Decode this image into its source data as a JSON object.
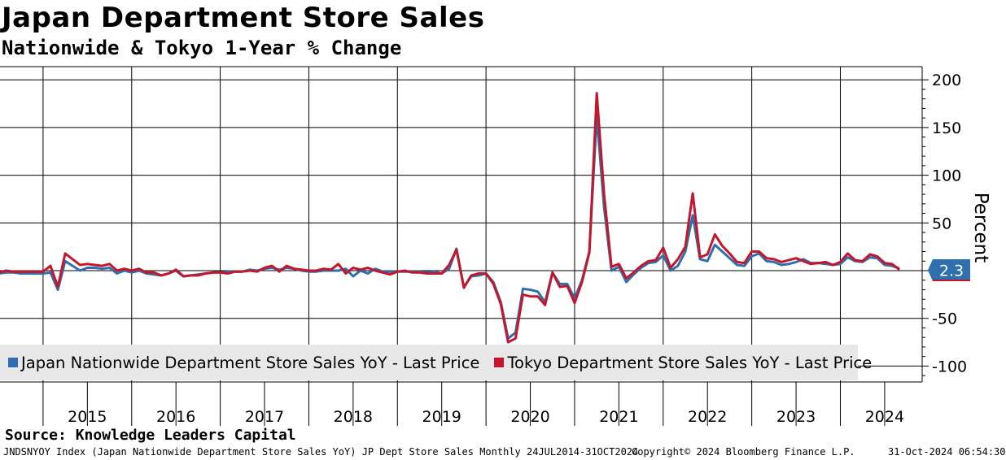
{
  "header": {
    "title": "Japan Department Store Sales",
    "subtitle": "Nationwide & Tokyo 1-Year % Change"
  },
  "legend": {
    "items": [
      {
        "label": "Japan Nationwide Department Store Sales YoY - Last Price",
        "color": "#2f6fad"
      },
      {
        "label": "Tokyo Department Store Sales YoY - Last Price",
        "color": "#c4172c"
      }
    ]
  },
  "last_value": {
    "label": "2.3",
    "color": "#2f6fad"
  },
  "footer": {
    "source": "Source: Knowledge Leaders Capital",
    "ticker": "JNDSNYOY Index (Japan Nationwide Department Store Sales YoY) JP Dept Store Sales  Monthly 24JUL2014-31OCT2024",
    "copyright": "Copyright© 2024 Bloomberg Finance L.P.",
    "timestamp": "31-Oct-2024 06:54:30"
  },
  "chart_data": {
    "type": "line",
    "ylabel": "Percent",
    "ylim": [
      -120,
      210
    ],
    "yticks": [
      200,
      150,
      100,
      50,
      0,
      -50,
      -100
    ],
    "ytick_labels": [
      "200",
      "150",
      "100",
      "50",
      "",
      "-50",
      "-100"
    ],
    "x_start": "2014-07",
    "x_end": "2024-10",
    "year_labels": [
      "2015",
      "2016",
      "2017",
      "2018",
      "2019",
      "2020",
      "2021",
      "2022",
      "2023",
      "2024"
    ],
    "grid": true,
    "legend_position": "bottom-left",
    "series": [
      {
        "name": "Japan Nationwide Department Store Sales YoY - Last Price",
        "color": "#2f6fad",
        "points": [
          [
            "2014-07",
            -3
          ],
          [
            "2014-08",
            -2
          ],
          [
            "2014-09",
            -2
          ],
          [
            "2014-10",
            -3
          ],
          [
            "2014-11",
            -3
          ],
          [
            "2014-12",
            -3
          ],
          [
            "2015-01",
            -3
          ],
          [
            "2015-02",
            -2
          ],
          [
            "2015-03",
            -20
          ],
          [
            "2015-04",
            10
          ],
          [
            "2015-05",
            5
          ],
          [
            "2015-06",
            0
          ],
          [
            "2015-07",
            3
          ],
          [
            "2015-08",
            3
          ],
          [
            "2015-09",
            2
          ],
          [
            "2015-10",
            3
          ],
          [
            "2015-11",
            -3
          ],
          [
            "2015-12",
            0
          ],
          [
            "2016-01",
            -2
          ],
          [
            "2016-02",
            0
          ],
          [
            "2016-03",
            -3
          ],
          [
            "2016-04",
            -4
          ],
          [
            "2016-05",
            -5
          ],
          [
            "2016-06",
            -3
          ],
          [
            "2016-07",
            0
          ],
          [
            "2016-08",
            -6
          ],
          [
            "2016-09",
            -5
          ],
          [
            "2016-10",
            -4
          ],
          [
            "2016-11",
            -3
          ],
          [
            "2016-12",
            -2
          ],
          [
            "2017-01",
            -2
          ],
          [
            "2017-02",
            -1
          ],
          [
            "2017-03",
            -1
          ],
          [
            "2017-04",
            -1
          ],
          [
            "2017-05",
            1
          ],
          [
            "2017-06",
            0
          ],
          [
            "2017-07",
            2
          ],
          [
            "2017-08",
            3
          ],
          [
            "2017-09",
            1
          ],
          [
            "2017-10",
            3
          ],
          [
            "2017-11",
            2
          ],
          [
            "2017-12",
            0
          ],
          [
            "2018-01",
            -1
          ],
          [
            "2018-02",
            -1
          ],
          [
            "2018-03",
            0
          ],
          [
            "2018-04",
            0
          ],
          [
            "2018-05",
            0
          ],
          [
            "2018-06",
            2
          ],
          [
            "2018-07",
            -6
          ],
          [
            "2018-08",
            0
          ],
          [
            "2018-09",
            -3
          ],
          [
            "2018-10",
            2
          ],
          [
            "2018-11",
            -1
          ],
          [
            "2018-12",
            -1
          ],
          [
            "2019-01",
            -1
          ],
          [
            "2019-02",
            -1
          ],
          [
            "2019-03",
            -1
          ],
          [
            "2019-04",
            -1
          ],
          [
            "2019-05",
            -2
          ],
          [
            "2019-06",
            -1
          ],
          [
            "2019-07",
            -3
          ],
          [
            "2019-08",
            2
          ],
          [
            "2019-09",
            23
          ],
          [
            "2019-10",
            -17
          ],
          [
            "2019-11",
            -6
          ],
          [
            "2019-12",
            -5
          ],
          [
            "2020-01",
            -3
          ],
          [
            "2020-02",
            -12
          ],
          [
            "2020-03",
            -33
          ],
          [
            "2020-04",
            -71
          ],
          [
            "2020-05",
            -65
          ],
          [
            "2020-06",
            -19
          ],
          [
            "2020-07",
            -20
          ],
          [
            "2020-08",
            -22
          ],
          [
            "2020-09",
            -33
          ],
          [
            "2020-10",
            -2
          ],
          [
            "2020-11",
            -14
          ],
          [
            "2020-12",
            -14
          ],
          [
            "2021-01",
            -29
          ],
          [
            "2021-02",
            -10
          ],
          [
            "2021-03",
            20
          ],
          [
            "2021-04",
            162
          ],
          [
            "2021-05",
            66
          ],
          [
            "2021-06",
            0
          ],
          [
            "2021-07",
            4
          ],
          [
            "2021-08",
            -12
          ],
          [
            "2021-09",
            -4
          ],
          [
            "2021-10",
            3
          ],
          [
            "2021-11",
            8
          ],
          [
            "2021-12",
            9
          ],
          [
            "2022-01",
            16
          ],
          [
            "2022-02",
            0
          ],
          [
            "2022-03",
            5
          ],
          [
            "2022-04",
            20
          ],
          [
            "2022-05",
            58
          ],
          [
            "2022-06",
            12
          ],
          [
            "2022-07",
            10
          ],
          [
            "2022-08",
            27
          ],
          [
            "2022-09",
            20
          ],
          [
            "2022-10",
            13
          ],
          [
            "2022-11",
            6
          ],
          [
            "2022-12",
            5
          ],
          [
            "2023-01",
            15
          ],
          [
            "2023-02",
            18
          ],
          [
            "2023-03",
            10
          ],
          [
            "2023-04",
            9
          ],
          [
            "2023-05",
            6
          ],
          [
            "2023-06",
            7
          ],
          [
            "2023-07",
            9
          ],
          [
            "2023-08",
            12
          ],
          [
            "2023-09",
            8
          ],
          [
            "2023-10",
            8
          ],
          [
            "2023-11",
            7
          ],
          [
            "2023-12",
            6
          ],
          [
            "2024-01",
            7
          ],
          [
            "2024-02",
            14
          ],
          [
            "2024-03",
            10
          ],
          [
            "2024-04",
            9
          ],
          [
            "2024-05",
            14
          ],
          [
            "2024-06",
            13
          ],
          [
            "2024-07",
            6
          ],
          [
            "2024-08",
            5
          ],
          [
            "2024-09",
            2.3
          ]
        ]
      },
      {
        "name": "Tokyo Department Store Sales YoY - Last Price",
        "color": "#c4172c",
        "points": [
          [
            "2014-07",
            -2
          ],
          [
            "2014-08",
            0
          ],
          [
            "2014-09",
            -1
          ],
          [
            "2014-10",
            -1
          ],
          [
            "2014-11",
            -1
          ],
          [
            "2014-12",
            -1
          ],
          [
            "2015-01",
            -1
          ],
          [
            "2015-02",
            5
          ],
          [
            "2015-03",
            -17
          ],
          [
            "2015-04",
            18
          ],
          [
            "2015-05",
            12
          ],
          [
            "2015-06",
            6
          ],
          [
            "2015-07",
            7
          ],
          [
            "2015-08",
            6
          ],
          [
            "2015-09",
            5
          ],
          [
            "2015-10",
            7
          ],
          [
            "2015-11",
            0
          ],
          [
            "2015-12",
            2
          ],
          [
            "2016-01",
            0
          ],
          [
            "2016-02",
            2
          ],
          [
            "2016-03",
            -2
          ],
          [
            "2016-04",
            -2
          ],
          [
            "2016-05",
            -5
          ],
          [
            "2016-06",
            -3
          ],
          [
            "2016-07",
            1
          ],
          [
            "2016-08",
            -6
          ],
          [
            "2016-09",
            -5
          ],
          [
            "2016-10",
            -5
          ],
          [
            "2016-11",
            -3
          ],
          [
            "2016-12",
            -2
          ],
          [
            "2017-01",
            -2
          ],
          [
            "2017-02",
            -3
          ],
          [
            "2017-03",
            -1
          ],
          [
            "2017-04",
            -1
          ],
          [
            "2017-05",
            0
          ],
          [
            "2017-06",
            -1
          ],
          [
            "2017-07",
            3
          ],
          [
            "2017-08",
            5
          ],
          [
            "2017-09",
            -1
          ],
          [
            "2017-10",
            5
          ],
          [
            "2017-11",
            2
          ],
          [
            "2017-12",
            1
          ],
          [
            "2018-01",
            0
          ],
          [
            "2018-02",
            0
          ],
          [
            "2018-03",
            2
          ],
          [
            "2018-04",
            1
          ],
          [
            "2018-05",
            7
          ],
          [
            "2018-06",
            -3
          ],
          [
            "2018-07",
            3
          ],
          [
            "2018-08",
            1
          ],
          [
            "2018-09",
            3
          ],
          [
            "2018-10",
            0
          ],
          [
            "2018-11",
            -2
          ],
          [
            "2018-12",
            -4
          ],
          [
            "2019-01",
            -1
          ],
          [
            "2019-02",
            0
          ],
          [
            "2019-03",
            -2
          ],
          [
            "2019-04",
            -2
          ],
          [
            "2019-05",
            -3
          ],
          [
            "2019-06",
            -3
          ],
          [
            "2019-07",
            -3
          ],
          [
            "2019-08",
            6
          ],
          [
            "2019-09",
            22
          ],
          [
            "2019-10",
            -18
          ],
          [
            "2019-11",
            -5
          ],
          [
            "2019-12",
            -3
          ],
          [
            "2020-01",
            -3
          ],
          [
            "2020-02",
            -14
          ],
          [
            "2020-03",
            -35
          ],
          [
            "2020-04",
            -75
          ],
          [
            "2020-05",
            -71
          ],
          [
            "2020-06",
            -25
          ],
          [
            "2020-07",
            -27
          ],
          [
            "2020-08",
            -27
          ],
          [
            "2020-09",
            -36
          ],
          [
            "2020-10",
            -2
          ],
          [
            "2020-11",
            -17
          ],
          [
            "2020-12",
            -16
          ],
          [
            "2021-01",
            -34
          ],
          [
            "2021-02",
            -12
          ],
          [
            "2021-03",
            19
          ],
          [
            "2021-04",
            186
          ],
          [
            "2021-05",
            80
          ],
          [
            "2021-06",
            4
          ],
          [
            "2021-07",
            7
          ],
          [
            "2021-08",
            -8
          ],
          [
            "2021-09",
            -2
          ],
          [
            "2021-10",
            5
          ],
          [
            "2021-11",
            10
          ],
          [
            "2021-12",
            11
          ],
          [
            "2022-01",
            24
          ],
          [
            "2022-02",
            3
          ],
          [
            "2022-03",
            12
          ],
          [
            "2022-04",
            25
          ],
          [
            "2022-05",
            81
          ],
          [
            "2022-06",
            14
          ],
          [
            "2022-07",
            17
          ],
          [
            "2022-08",
            38
          ],
          [
            "2022-09",
            26
          ],
          [
            "2022-10",
            18
          ],
          [
            "2022-11",
            9
          ],
          [
            "2022-12",
            8
          ],
          [
            "2023-01",
            20
          ],
          [
            "2023-02",
            20
          ],
          [
            "2023-03",
            13
          ],
          [
            "2023-04",
            12
          ],
          [
            "2023-05",
            9
          ],
          [
            "2023-06",
            11
          ],
          [
            "2023-07",
            13
          ],
          [
            "2023-08",
            10
          ],
          [
            "2023-09",
            7
          ],
          [
            "2023-10",
            8
          ],
          [
            "2023-11",
            9
          ],
          [
            "2023-12",
            6
          ],
          [
            "2024-01",
            9
          ],
          [
            "2024-02",
            18
          ],
          [
            "2024-03",
            11
          ],
          [
            "2024-04",
            10
          ],
          [
            "2024-05",
            17
          ],
          [
            "2024-06",
            15
          ],
          [
            "2024-07",
            8
          ],
          [
            "2024-08",
            7
          ],
          [
            "2024-09",
            1
          ]
        ]
      }
    ]
  }
}
